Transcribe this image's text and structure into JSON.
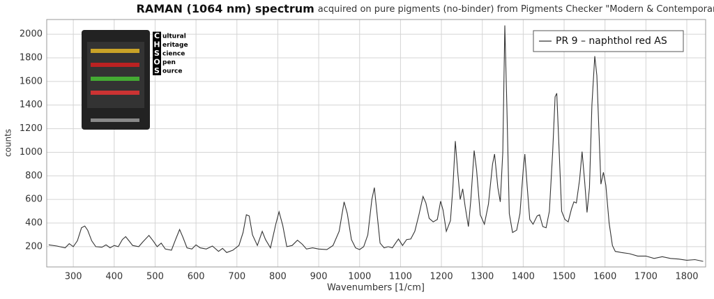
{
  "chart_data": {
    "type": "line",
    "title": "RAMAN (1064 nm) spectrum",
    "subtitle": "acquired on pure pigments (no-binder) from Pigments Checker \"Modern & Contemporary Art\"",
    "x_label": "Wavenumbers [1/cm]",
    "y_label": "counts",
    "logo": {
      "letters": [
        "C",
        "H",
        "S",
        "O",
        "S"
      ],
      "words": [
        "ultural",
        "eritage",
        "cience",
        "pen",
        "ource"
      ]
    },
    "x": [
      240,
      260,
      280,
      290,
      300,
      310,
      320,
      328,
      335,
      345,
      355,
      370,
      380,
      390,
      400,
      410,
      420,
      428,
      436,
      445,
      460,
      470,
      485,
      495,
      505,
      515,
      525,
      540,
      550,
      560,
      568,
      578,
      590,
      600,
      610,
      625,
      640,
      655,
      665,
      675,
      690,
      705,
      715,
      723,
      730,
      738,
      750,
      762,
      770,
      782,
      795,
      803,
      812,
      822,
      835,
      848,
      860,
      870,
      885,
      900,
      920,
      935,
      950,
      962,
      970,
      980,
      990,
      1000,
      1010,
      1020,
      1030,
      1036,
      1042,
      1050,
      1060,
      1070,
      1080,
      1090,
      1095,
      1105,
      1115,
      1125,
      1135,
      1145,
      1155,
      1162,
      1170,
      1180,
      1190,
      1198,
      1204,
      1212,
      1222,
      1228,
      1234,
      1240,
      1246,
      1252,
      1258,
      1266,
      1272,
      1280,
      1286,
      1295,
      1305,
      1315,
      1325,
      1330,
      1338,
      1344,
      1350,
      1355,
      1360,
      1366,
      1374,
      1384,
      1392,
      1400,
      1404,
      1410,
      1416,
      1424,
      1434,
      1440,
      1448,
      1456,
      1464,
      1472,
      1478,
      1482,
      1488,
      1494,
      1502,
      1510,
      1518,
      1524,
      1530,
      1538,
      1544,
      1550,
      1556,
      1562,
      1568,
      1575,
      1580,
      1586,
      1590,
      1596,
      1602,
      1610,
      1618,
      1625,
      1640,
      1660,
      1680,
      1700,
      1720,
      1740,
      1760,
      1780,
      1800,
      1820,
      1840
    ],
    "series": [
      {
        "name": "PR 9 – naphthol red AS",
        "color": "#333333",
        "values": [
          215,
          205,
          190,
          225,
          200,
          250,
          360,
          375,
          340,
          250,
          200,
          195,
          215,
          190,
          210,
          200,
          260,
          285,
          250,
          210,
          200,
          240,
          295,
          250,
          200,
          230,
          180,
          170,
          260,
          345,
          280,
          190,
          180,
          215,
          190,
          180,
          205,
          160,
          185,
          150,
          170,
          210,
          320,
          470,
          460,
          300,
          210,
          330,
          260,
          190,
          390,
          495,
          380,
          200,
          210,
          255,
          220,
          180,
          190,
          180,
          175,
          210,
          330,
          580,
          480,
          260,
          190,
          175,
          200,
          300,
          600,
          700,
          500,
          230,
          190,
          200,
          190,
          240,
          265,
          210,
          260,
          265,
          330,
          470,
          625,
          570,
          440,
          410,
          430,
          585,
          510,
          330,
          420,
          700,
          1095,
          830,
          600,
          690,
          540,
          370,
          600,
          1015,
          850,
          470,
          390,
          560,
          900,
          985,
          700,
          580,
          1000,
          2075,
          1400,
          480,
          320,
          340,
          480,
          850,
          985,
          700,
          430,
          390,
          460,
          470,
          370,
          360,
          500,
          1000,
          1470,
          1500,
          1000,
          500,
          430,
          410,
          520,
          580,
          570,
          770,
          1005,
          760,
          490,
          700,
          1400,
          1815,
          1650,
          1100,
          730,
          830,
          720,
          400,
          210,
          160,
          150,
          140,
          120,
          120,
          100,
          115,
          100,
          95,
          85,
          90,
          75
        ]
      }
    ],
    "xlim": [
      235,
      1846
    ],
    "ylim": [
      28,
      2125
    ],
    "xticks": [
      300,
      400,
      500,
      600,
      700,
      800,
      900,
      1000,
      1100,
      1200,
      1300,
      1400,
      1500,
      1600,
      1700,
      1800
    ],
    "yticks": [
      200,
      400,
      600,
      800,
      1000,
      1200,
      1400,
      1600,
      1800,
      2000
    ],
    "grid": true,
    "legend": "top-right"
  }
}
